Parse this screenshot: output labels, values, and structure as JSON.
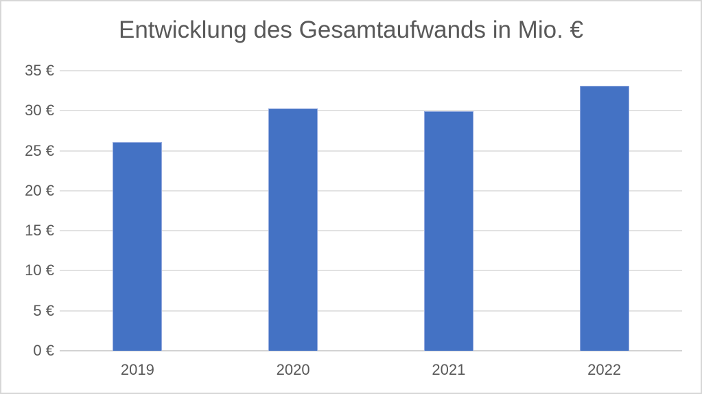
{
  "chart_data": {
    "type": "bar",
    "title": "Entwicklung des Gesamtaufwands in Mio. €",
    "categories": [
      "2019",
      "2020",
      "2021",
      "2022"
    ],
    "values": [
      26.1,
      30.3,
      29.9,
      33.1
    ],
    "xlabel": "",
    "ylabel": "",
    "ylim": [
      0,
      35
    ],
    "y_tick_values": [
      35,
      30,
      25,
      20,
      15,
      10,
      5,
      0
    ],
    "y_tick_labels": [
      "35 €",
      "30 €",
      "25 €",
      "20 €",
      "15 €",
      "10 €",
      "5 €",
      "0 €"
    ],
    "grid": true,
    "legend_position": "none",
    "colors": {
      "bar_fill": "#4472C4",
      "bar_border": "#94aadf",
      "gridline": "#e2e2e2",
      "axis_line": "#d2d2d2",
      "text": "#595959",
      "frame_border": "#d7d7d7",
      "background": "#ffffff"
    }
  }
}
